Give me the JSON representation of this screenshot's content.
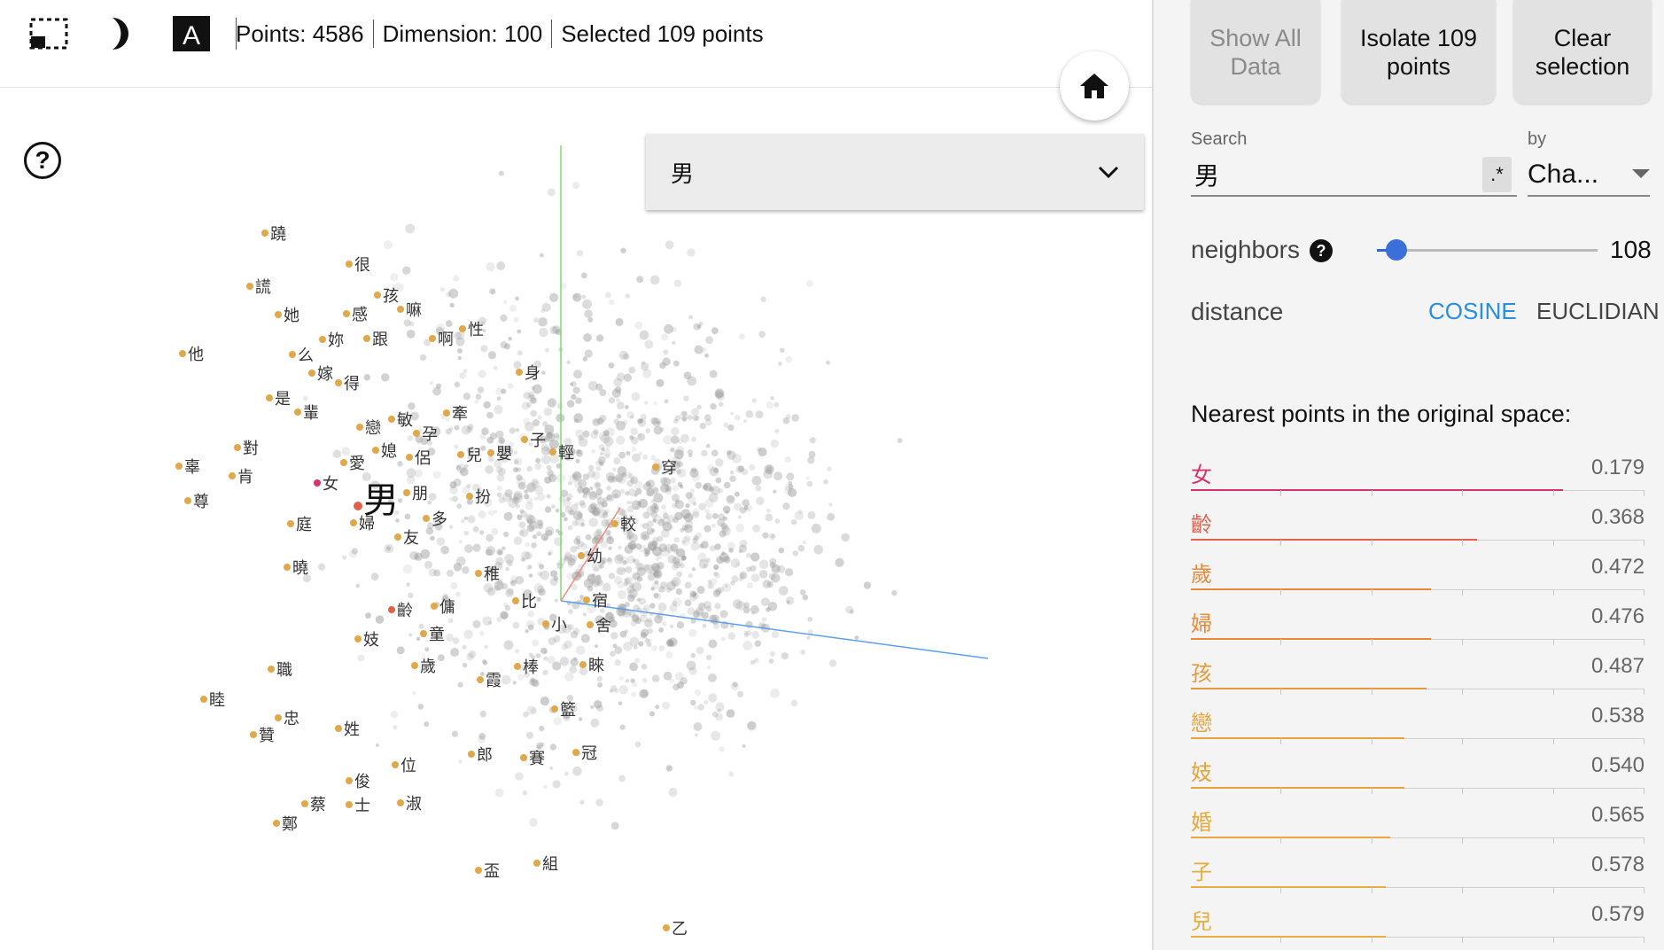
{
  "toolbar": {
    "points_text": "Points: 4586",
    "dimension_text": "Dimension: 100",
    "selected_text": "Selected 109 points"
  },
  "icons": {
    "selection": "box-select-icon",
    "night_mode": "half-moon-icon",
    "labels": "label-A-icon",
    "help": "help-circle-icon",
    "home": "home-icon",
    "dropdown": "chevron-down-icon"
  },
  "help_glyph": "?",
  "label_toggle_glyph": "A",
  "label_dropdown": {
    "value": "男"
  },
  "panel": {
    "show_all": "Show All\nData",
    "isolate": "Isolate 109\npoints",
    "clear": "Clear\nselection",
    "search_label": "Search",
    "search_value": "男",
    "regex_glyph": ".*",
    "by_label": "by",
    "by_value": "Cha...",
    "neighbors_label": "neighbors",
    "neighbors_help_glyph": "?",
    "neighbors_value": "108",
    "neighbors_fraction": 0.09,
    "distance_label": "distance",
    "cosine": "COSINE",
    "euclidean": "EUCLIDIAN",
    "nearest_heading": "Nearest points in the original space:"
  },
  "nearest": [
    {
      "char": "女",
      "dist": "0.179",
      "color": "#d6336c",
      "fraction": 0.82
    },
    {
      "char": "齡",
      "dist": "0.368",
      "color": "#e0604a",
      "fraction": 0.63
    },
    {
      "char": "歲",
      "dist": "0.472",
      "color": "#e88a3a",
      "fraction": 0.53
    },
    {
      "char": "婦",
      "dist": "0.476",
      "color": "#e88a3a",
      "fraction": 0.53
    },
    {
      "char": "孩",
      "dist": "0.487",
      "color": "#e89a3a",
      "fraction": 0.52
    },
    {
      "char": "戀",
      "dist": "0.538",
      "color": "#e8a23a",
      "fraction": 0.47
    },
    {
      "char": "妓",
      "dist": "0.540",
      "color": "#e8a23a",
      "fraction": 0.47
    },
    {
      "char": "婚",
      "dist": "0.565",
      "color": "#e8a83a",
      "fraction": 0.44
    },
    {
      "char": "子",
      "dist": "0.578",
      "color": "#e8ac3a",
      "fraction": 0.43
    },
    {
      "char": "兒",
      "dist": "0.579",
      "color": "#e8ac3a",
      "fraction": 0.43
    }
  ],
  "scatter_labels": [
    {
      "t": "男",
      "big": true
    },
    {
      "t": "蹺"
    },
    {
      "t": "很"
    },
    {
      "t": "謊"
    },
    {
      "t": "孩"
    },
    {
      "t": "嘛"
    },
    {
      "t": "她"
    },
    {
      "t": "感"
    },
    {
      "t": "他"
    },
    {
      "t": "妳"
    },
    {
      "t": "跟"
    },
    {
      "t": "啊"
    },
    {
      "t": "性"
    },
    {
      "t": "么"
    },
    {
      "t": "嫁"
    },
    {
      "t": "得"
    },
    {
      "t": "身"
    },
    {
      "t": "是"
    },
    {
      "t": "輩"
    },
    {
      "t": "敏"
    },
    {
      "t": "牽"
    },
    {
      "t": "戀"
    },
    {
      "t": "孕"
    },
    {
      "t": "對"
    },
    {
      "t": "媳"
    },
    {
      "t": "子"
    },
    {
      "t": "辜"
    },
    {
      "t": "侶"
    },
    {
      "t": "兒"
    },
    {
      "t": "嬰"
    },
    {
      "t": "輕"
    },
    {
      "t": "穿"
    },
    {
      "t": "肯"
    },
    {
      "t": "愛"
    },
    {
      "t": "女"
    },
    {
      "t": "朋"
    },
    {
      "t": "扮"
    },
    {
      "t": "尊"
    },
    {
      "t": "較"
    },
    {
      "t": "婦"
    },
    {
      "t": "多"
    },
    {
      "t": "庭"
    },
    {
      "t": "友"
    },
    {
      "t": "幼"
    },
    {
      "t": "曉"
    },
    {
      "t": "稚"
    },
    {
      "t": "齡"
    },
    {
      "t": "傭"
    },
    {
      "t": "比"
    },
    {
      "t": "宿"
    },
    {
      "t": "小"
    },
    {
      "t": "舍"
    },
    {
      "t": "妓"
    },
    {
      "t": "童"
    },
    {
      "t": "職"
    },
    {
      "t": "歲"
    },
    {
      "t": "棒"
    },
    {
      "t": "睞"
    },
    {
      "t": "霞"
    },
    {
      "t": "睦"
    },
    {
      "t": "籃"
    },
    {
      "t": "忠"
    },
    {
      "t": "姓"
    },
    {
      "t": "贊"
    },
    {
      "t": "郎"
    },
    {
      "t": "賽"
    },
    {
      "t": "冠"
    },
    {
      "t": "位"
    },
    {
      "t": "俊"
    },
    {
      "t": "蔡"
    },
    {
      "t": "士"
    },
    {
      "t": "淑"
    },
    {
      "t": "鄭"
    },
    {
      "t": "組"
    },
    {
      "t": "盃"
    },
    {
      "t": "乙"
    }
  ]
}
